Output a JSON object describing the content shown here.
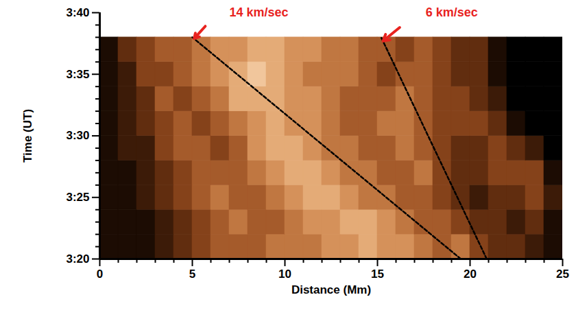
{
  "chart_data": {
    "type": "heatmap",
    "x_label": "Distance (Mm)",
    "y_label": "Time (UT)",
    "xlim": [
      0,
      25
    ],
    "xticks": [
      0,
      5,
      10,
      15,
      20,
      25
    ],
    "x_minor_ticks": [
      1,
      2,
      3,
      4,
      6,
      7,
      8,
      9,
      11,
      12,
      13,
      14,
      16,
      17,
      18,
      19,
      21,
      22,
      23,
      24
    ],
    "ylim": [
      200,
      220
    ],
    "yticks": [
      {
        "value": 200,
        "label": "3:20"
      },
      {
        "value": 205,
        "label": "3:25"
      },
      {
        "value": 210,
        "label": "3:30"
      },
      {
        "value": 215,
        "label": "3:35"
      },
      {
        "value": 220,
        "label": "3:40"
      }
    ],
    "y_minor_ticks": [
      201,
      202,
      203,
      204,
      206,
      207,
      208,
      209,
      211,
      212,
      213,
      214,
      216,
      217,
      218,
      219
    ],
    "cells": {
      "x_edges": [
        0,
        1,
        2,
        3,
        4,
        5,
        6,
        7,
        8,
        9,
        10,
        11,
        12,
        13,
        14,
        15,
        16,
        17,
        18,
        19,
        20,
        21,
        22,
        23,
        24,
        25
      ],
      "y_edges": [
        200,
        202,
        204,
        206,
        208,
        210,
        212,
        214,
        216,
        218
      ],
      "value_range": [
        0,
        10
      ],
      "values": [
        [
          1,
          1,
          1,
          2,
          3,
          4,
          5,
          5,
          5,
          6,
          6,
          6,
          7,
          7,
          8,
          7,
          7,
          6,
          5,
          6,
          4,
          3,
          3,
          2,
          1
        ],
        [
          1,
          1,
          1,
          2,
          3,
          4,
          5,
          6,
          5,
          5,
          6,
          7,
          7,
          8,
          8,
          7,
          6,
          5,
          5,
          4,
          3,
          3,
          2,
          3,
          1
        ],
        [
          1,
          1,
          2,
          3,
          4,
          5,
          6,
          5,
          5,
          6,
          7,
          8,
          8,
          7,
          6,
          6,
          5,
          5,
          4,
          3,
          2,
          3,
          3,
          4,
          2
        ],
        [
          1,
          1,
          2,
          3,
          4,
          5,
          5,
          5,
          6,
          7,
          8,
          8,
          7,
          6,
          6,
          5,
          5,
          6,
          4,
          3,
          3,
          4,
          4,
          4,
          1
        ],
        [
          1,
          2,
          2,
          4,
          5,
          5,
          4,
          5,
          7,
          8,
          8,
          7,
          6,
          6,
          5,
          5,
          6,
          5,
          4,
          3,
          3,
          4,
          3,
          2,
          0
        ],
        [
          1,
          2,
          3,
          4,
          5,
          4,
          5,
          6,
          7,
          8,
          7,
          7,
          6,
          5,
          5,
          6,
          6,
          5,
          4,
          4,
          4,
          3,
          1,
          0,
          0
        ],
        [
          1,
          2,
          3,
          5,
          4,
          5,
          6,
          8,
          8,
          8,
          7,
          7,
          6,
          5,
          5,
          5,
          6,
          5,
          4,
          4,
          3,
          2,
          0,
          0,
          0
        ],
        [
          1,
          2,
          4,
          4,
          5,
          6,
          7,
          8,
          9,
          8,
          7,
          6,
          6,
          6,
          5,
          4,
          5,
          5,
          4,
          3,
          3,
          1,
          0,
          0,
          0
        ],
        [
          1,
          3,
          4,
          5,
          5,
          6,
          7,
          7,
          8,
          8,
          7,
          7,
          6,
          6,
          5,
          5,
          4,
          5,
          4,
          3,
          3,
          1,
          0,
          0,
          0
        ]
      ]
    },
    "lines": [
      {
        "x": [
          19.5,
          5
        ],
        "y": [
          200,
          218
        ],
        "color": "#000000",
        "line_style": "dashed"
      },
      {
        "x": [
          20.9,
          15.2
        ],
        "y": [
          200,
          218
        ],
        "color": "#000000",
        "line_style": "dashed"
      }
    ],
    "annotations": [
      {
        "text": "14 km/sec",
        "x": 7.0,
        "y": 220,
        "color": "#e8231f",
        "arrow": {
          "x1": 5.7,
          "y1": 218.9,
          "x2": 5.1,
          "y2": 217.9
        }
      },
      {
        "text": "6 km/sec",
        "x": 17.6,
        "y": 220,
        "color": "#e8231f",
        "arrow": {
          "x1": 16.2,
          "y1": 218.8,
          "x2": 15.3,
          "y2": 217.7
        }
      }
    ]
  }
}
